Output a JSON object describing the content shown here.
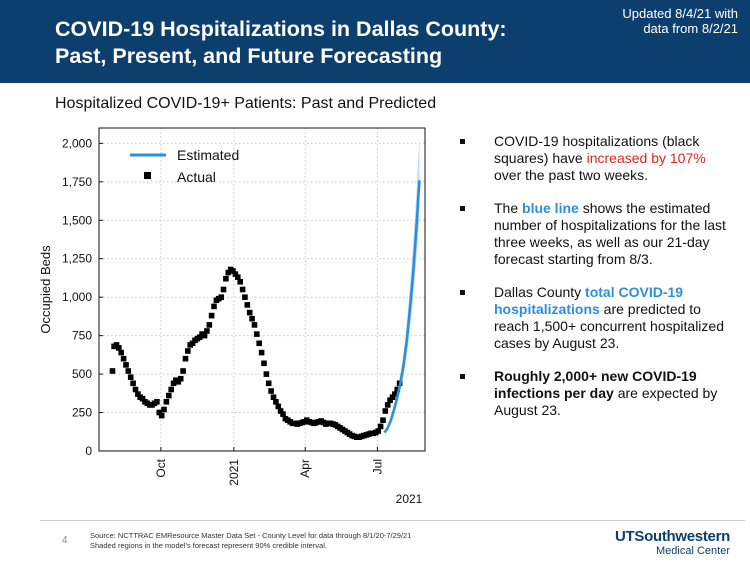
{
  "header": {
    "title_line1": "COVID-19 Hospitalizations in Dallas County:",
    "title_line2": "Past, Present, and Future Forecasting",
    "updated_line1": "Updated 8/4/21 with",
    "updated_line2": "data from 8/2/21"
  },
  "chart_title": "Hospitalized COVID-19+ Patients: Past and Predicted",
  "colors": {
    "banner": "#0d3f6e",
    "estimated": "#2e8fd8",
    "actual": "#000000",
    "highlight_red": "#e0261b",
    "highlight_blue": "#2e8fd8"
  },
  "chart_data": {
    "type": "scatter",
    "ylabel": "Occupied Beds",
    "xlabel": "2021",
    "ylim": [
      0,
      2100
    ],
    "yticks": [
      0,
      250,
      500,
      750,
      1000,
      1250,
      1500,
      1750,
      2000
    ],
    "ytick_labels": [
      "0",
      "250",
      "500",
      "750",
      "1,000",
      "1,250",
      "1,500",
      "1,750",
      "2,000"
    ],
    "x_range": [
      "2020-07-15",
      "2021-08-30"
    ],
    "xticks": [
      "2020-10-01",
      "2021-01-01",
      "2021-04-01",
      "2021-07-01"
    ],
    "xtick_labels": [
      "Oct",
      "2021",
      "Apr",
      "Jul"
    ],
    "grid": true,
    "legend": {
      "placement": "top-left",
      "estimated_label": "Estimated",
      "actual_label": "Actual"
    },
    "series": [
      {
        "name": "Actual",
        "marker": "square",
        "x": [
          "2020-08-01",
          "2020-08-03",
          "2020-08-06",
          "2020-08-09",
          "2020-08-12",
          "2020-08-15",
          "2020-08-18",
          "2020-08-21",
          "2020-08-24",
          "2020-08-27",
          "2020-08-30",
          "2020-09-02",
          "2020-09-05",
          "2020-09-08",
          "2020-09-11",
          "2020-09-14",
          "2020-09-17",
          "2020-09-20",
          "2020-09-23",
          "2020-09-26",
          "2020-09-29",
          "2020-10-02",
          "2020-10-05",
          "2020-10-08",
          "2020-10-11",
          "2020-10-14",
          "2020-10-17",
          "2020-10-20",
          "2020-10-23",
          "2020-10-26",
          "2020-10-29",
          "2020-11-01",
          "2020-11-04",
          "2020-11-07",
          "2020-11-10",
          "2020-11-13",
          "2020-11-16",
          "2020-11-19",
          "2020-11-22",
          "2020-11-25",
          "2020-11-28",
          "2020-12-01",
          "2020-12-04",
          "2020-12-07",
          "2020-12-10",
          "2020-12-13",
          "2020-12-16",
          "2020-12-19",
          "2020-12-22",
          "2020-12-25",
          "2020-12-28",
          "2020-12-31",
          "2021-01-03",
          "2021-01-06",
          "2021-01-09",
          "2021-01-12",
          "2021-01-15",
          "2021-01-18",
          "2021-01-21",
          "2021-01-24",
          "2021-01-27",
          "2021-01-30",
          "2021-02-02",
          "2021-02-05",
          "2021-02-08",
          "2021-02-11",
          "2021-02-14",
          "2021-02-17",
          "2021-02-20",
          "2021-02-23",
          "2021-02-26",
          "2021-03-01",
          "2021-03-04",
          "2021-03-07",
          "2021-03-10",
          "2021-03-13",
          "2021-03-16",
          "2021-03-19",
          "2021-03-22",
          "2021-03-25",
          "2021-03-28",
          "2021-03-31",
          "2021-04-03",
          "2021-04-06",
          "2021-04-09",
          "2021-04-12",
          "2021-04-15",
          "2021-04-18",
          "2021-04-21",
          "2021-04-24",
          "2021-04-27",
          "2021-04-30",
          "2021-05-03",
          "2021-05-06",
          "2021-05-09",
          "2021-05-12",
          "2021-05-15",
          "2021-05-18",
          "2021-05-21",
          "2021-05-24",
          "2021-05-27",
          "2021-05-30",
          "2021-06-02",
          "2021-06-05",
          "2021-06-08",
          "2021-06-11",
          "2021-06-14",
          "2021-06-17",
          "2021-06-20",
          "2021-06-23",
          "2021-06-26",
          "2021-06-29",
          "2021-07-02",
          "2021-07-05",
          "2021-07-08",
          "2021-07-11",
          "2021-07-14",
          "2021-07-17",
          "2021-07-20",
          "2021-07-23",
          "2021-07-26",
          "2021-07-29"
        ],
        "y": [
          520,
          680,
          690,
          670,
          640,
          600,
          560,
          520,
          480,
          440,
          400,
          370,
          350,
          340,
          320,
          310,
          300,
          300,
          310,
          320,
          250,
          230,
          270,
          320,
          360,
          400,
          440,
          460,
          450,
          470,
          520,
          600,
          650,
          690,
          700,
          720,
          730,
          740,
          760,
          750,
          780,
          820,
          880,
          940,
          980,
          990,
          1000,
          1050,
          1120,
          1160,
          1180,
          1170,
          1150,
          1130,
          1100,
          1050,
          1000,
          950,
          900,
          860,
          820,
          760,
          700,
          640,
          570,
          500,
          440,
          390,
          350,
          320,
          290,
          260,
          240,
          210,
          200,
          190,
          180,
          180,
          175,
          180,
          185,
          190,
          200,
          190,
          185,
          180,
          185,
          190,
          195,
          185,
          175,
          180,
          180,
          175,
          170,
          160,
          150,
          140,
          130,
          120,
          110,
          100,
          95,
          90,
          90,
          95,
          100,
          105,
          110,
          115,
          115,
          120,
          130,
          160,
          200,
          260,
          300,
          330,
          350,
          370,
          400,
          440
        ]
      },
      {
        "name": "Estimated",
        "line": true,
        "x": [
          "2021-07-10",
          "2021-07-14",
          "2021-07-18",
          "2021-07-22",
          "2021-07-26",
          "2021-07-30",
          "2021-08-03",
          "2021-08-07",
          "2021-08-11",
          "2021-08-15",
          "2021-08-19",
          "2021-08-23"
        ],
        "y": [
          120,
          150,
          200,
          270,
          350,
          440,
          560,
          720,
          920,
          1150,
          1440,
          1760
        ],
        "interval_upper": [
          130,
          165,
          220,
          300,
          390,
          500,
          640,
          830,
          1070,
          1340,
          1660,
          2040
        ],
        "interval_lower": [
          110,
          135,
          180,
          240,
          310,
          390,
          490,
          620,
          790,
          990,
          1240,
          1520
        ]
      }
    ]
  },
  "bullets": [
    {
      "pre": "COVID-19 hospitalizations (black squares) have ",
      "highlight": "increased by 107%",
      "post": " over the past two weeks."
    },
    {
      "pre": "The ",
      "highlight": "blue line",
      "post": " shows the estimated number of hospitalizations for the last three weeks, as well as our 21-day forecast starting from 8/3."
    },
    {
      "pre": "Dallas County ",
      "highlight": "total COVID-19 hospitalizations",
      "post": " are predicted to reach 1,500+ concurrent hospitalized cases by August 23."
    },
    {
      "pre": "",
      "highlight": "Roughly 2,000+ new COVID-19 infections per day",
      "post": " are expected by August 23."
    }
  ],
  "footer": {
    "page_number": "4",
    "source_line1": "Source: NCTTRAC EMResource Master Data Set - County Level for data through 8/1/20-7/29/21",
    "source_line2": "Shaded regions in the model's forecast represent 90% credible interval.",
    "logo_main": "UTSouthwestern",
    "logo_sub": "Medical Center"
  }
}
